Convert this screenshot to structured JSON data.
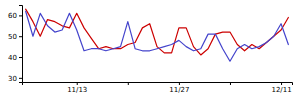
{
  "chart_data": {
    "type": "line",
    "x": [
      0,
      1,
      2,
      3,
      4,
      5,
      6,
      7,
      8,
      9,
      10,
      11,
      12,
      13,
      14,
      15,
      16,
      17,
      18,
      19,
      20,
      21,
      22,
      23,
      24,
      25,
      26,
      27,
      28,
      29,
      30,
      31,
      32,
      33,
      34,
      35,
      36
    ],
    "series": [
      {
        "color": "#cc0000",
        "values": [
          63,
          57,
          50,
          58,
          57,
          55,
          54,
          61,
          54,
          49,
          44,
          45,
          44,
          44,
          46,
          47,
          54,
          56,
          45,
          42,
          42,
          54,
          54,
          45,
          41,
          44,
          51,
          52,
          52,
          46,
          43,
          46,
          44,
          47,
          50,
          53,
          59
        ]
      },
      {
        "color": "#4444cc",
        "values": [
          62,
          50,
          61,
          55,
          52,
          53,
          61,
          53,
          43,
          44,
          44,
          43,
          44,
          45,
          57,
          44,
          43,
          43,
          44,
          45,
          46,
          48,
          45,
          43,
          44,
          51,
          51,
          44,
          38,
          44,
          46,
          44,
          45,
          47,
          50,
          56,
          46
        ]
      }
    ],
    "xlim": [
      -0.5,
      36.5
    ],
    "xticks": [
      {
        "value": 7,
        "label": "11/13"
      },
      {
        "value": 14,
        "label": null
      },
      {
        "value": 21,
        "label": "11/27"
      },
      {
        "value": 28,
        "label": null
      },
      {
        "value": 35,
        "label": "12/11"
      }
    ],
    "ylim": [
      28,
      65
    ],
    "yticks": [
      30,
      40,
      50,
      60
    ],
    "grid": false
  }
}
